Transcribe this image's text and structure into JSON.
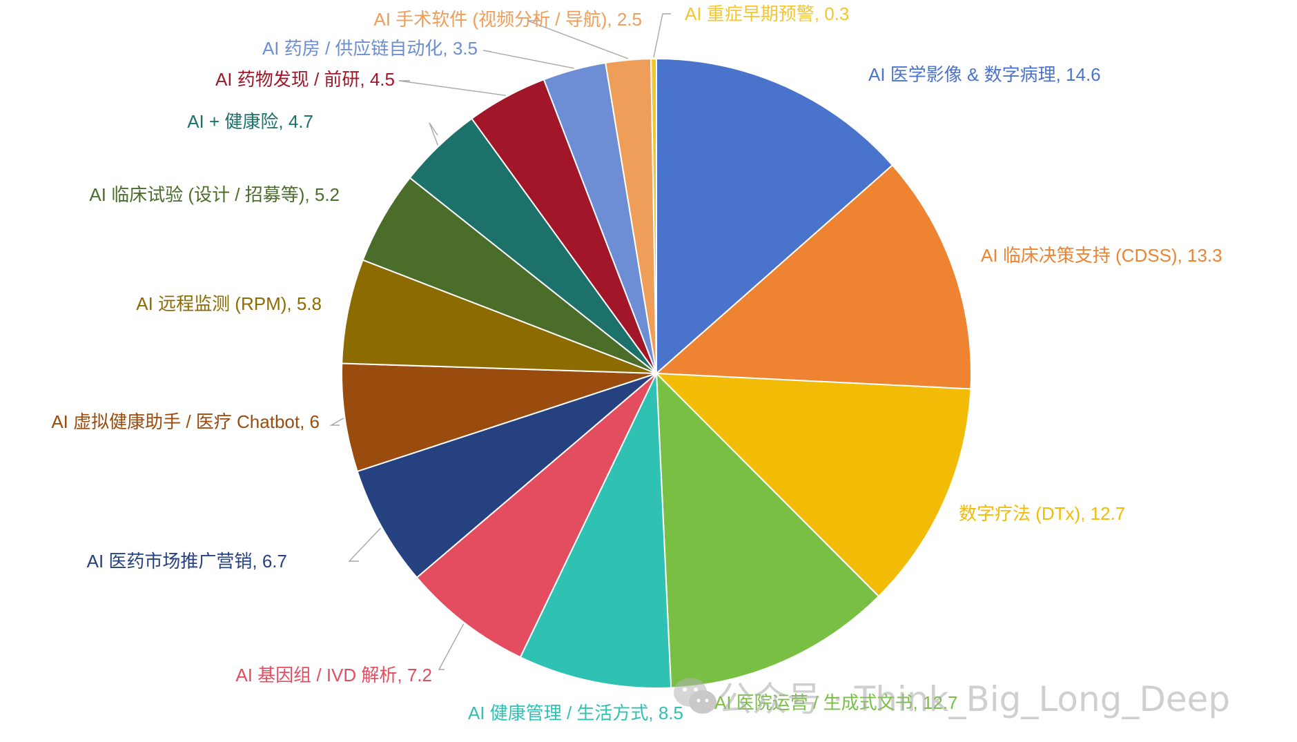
{
  "chart_data": {
    "type": "pie",
    "title": "",
    "start_angle_deg": 0,
    "direction": "clockwise",
    "slices": [
      {
        "label": "AI 医学影像 & 数字病理",
        "value": 14.6,
        "display": "AI 医学影像 & 数字病理, 14.6",
        "color": "#4a74cc"
      },
      {
        "label": "AI 临床决策支持 (CDSS)",
        "value": 13.3,
        "display": "AI 临床决策支持 (CDSS), 13.3",
        "color": "#ee8432"
      },
      {
        "label": "数字疗法 (DTx)",
        "value": 12.7,
        "display": "数字疗法 (DTx), 12.7",
        "color": "#f2bb05"
      },
      {
        "label": "AI 医院运营 / 生成式文书",
        "value": 12.7,
        "display": "AI 医院运营 / 生成式文书, 12.7",
        "color": "#78bf44"
      },
      {
        "label": "AI 健康管理 / 生活方式",
        "value": 8.5,
        "display": "AI 健康管理 / 生活方式, 8.5",
        "color": "#2fc1b2"
      },
      {
        "label": "AI 基因组 / IVD 解析",
        "value": 7.2,
        "display": "AI 基因组 / IVD 解析, 7.2",
        "color": "#e44d5f"
      },
      {
        "label": "AI 医药市场推广营销",
        "value": 6.7,
        "display": "AI 医药市场推广营销, 6.7",
        "color": "#25417f"
      },
      {
        "label": "AI 虚拟健康助手 / 医疗 Chatbot",
        "value": 6,
        "display": "AI 虚拟健康助手 / 医疗 Chatbot, 6",
        "color": "#9a4b0e"
      },
      {
        "label": "AI 远程监测 (RPM)",
        "value": 5.8,
        "display": "AI 远程监测 (RPM), 5.8",
        "color": "#8c6b00"
      },
      {
        "label": "AI 临床试验 (设计 / 招募等)",
        "value": 5.2,
        "display": "AI 临床试验 (设计 / 招募等), 5.2",
        "color": "#4a6e29"
      },
      {
        "label": "AI + 健康险",
        "value": 4.7,
        "display": "AI + 健康险, 4.7",
        "color": "#1c726a"
      },
      {
        "label": "AI 药物发现 / 前研",
        "value": 4.5,
        "display": "AI 药物发现 / 前研, 4.5",
        "color": "#a11628"
      },
      {
        "label": "AI 药房 / 供应链自动化",
        "value": 3.5,
        "display": "AI 药房 / 供应链自动化, 3.5",
        "color": "#6d8ed4"
      },
      {
        "label": "AI 手术软件 (视频分析 / 导航)",
        "value": 2.5,
        "display": "AI 手术软件 (视频分析 / 导航), 2.5",
        "color": "#ef9e5a"
      },
      {
        "label": "AI 重症早期预警",
        "value": 0.3,
        "display": "AI 重症早期预警, 0.3",
        "color": "#f6c52c"
      }
    ]
  },
  "watermark": {
    "text": "公众号 · Think_Big_Long_Deep",
    "icon": "wechat-icon"
  }
}
